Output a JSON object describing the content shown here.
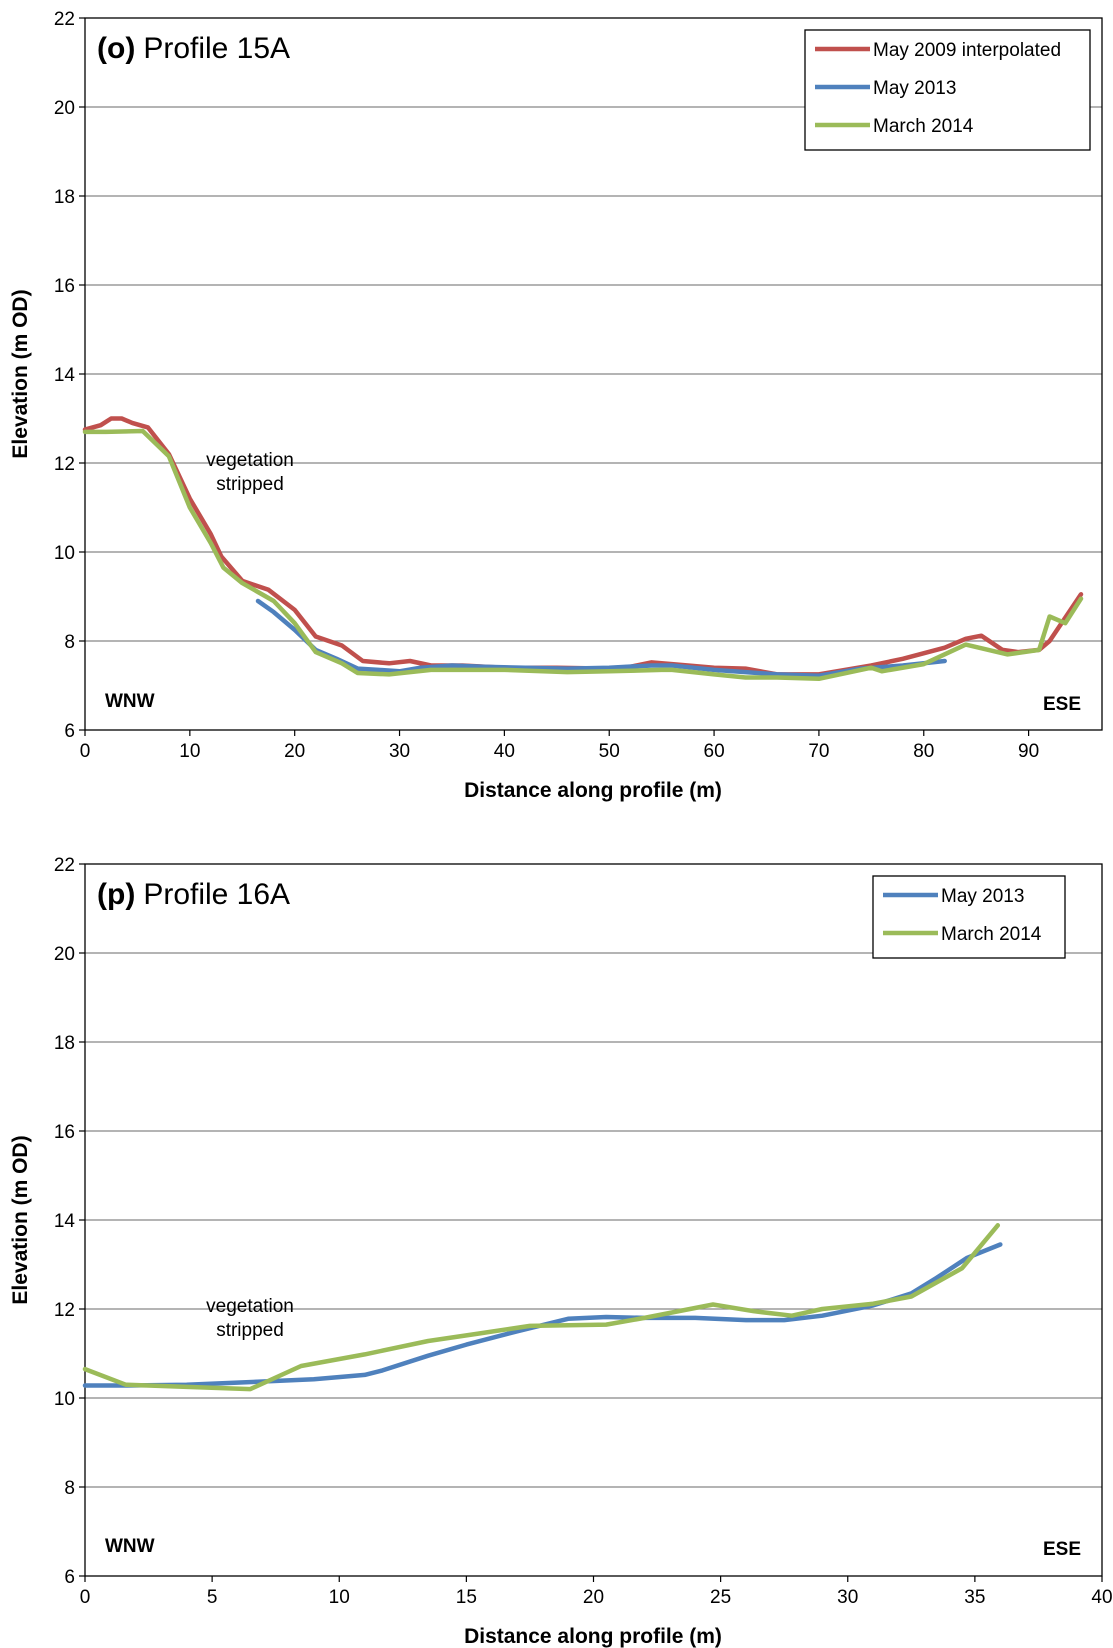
{
  "chart_data": [
    {
      "type": "line",
      "panel_label": "(o)",
      "title": "Profile 15A",
      "xlabel": "Distance along profile (m)",
      "ylabel": "Elevation (m OD)",
      "xlim": [
        0,
        97
      ],
      "ylim": [
        6,
        22
      ],
      "xticks": [
        0,
        10,
        20,
        30,
        40,
        50,
        60,
        70,
        80,
        90
      ],
      "yticks": [
        6,
        8,
        10,
        12,
        14,
        16,
        18,
        20,
        22
      ],
      "grid": "horizontal",
      "legend_position": "top-right",
      "annotations": {
        "vegetation": [
          "vegetation",
          "stripped"
        ],
        "left_direction": "WNW",
        "right_direction": "ESE"
      },
      "series": [
        {
          "name": "May 2009 interpolated",
          "color": "#c0504d",
          "points": [
            [
              0,
              12.75
            ],
            [
              1.5,
              12.85
            ],
            [
              2.5,
              13.0
            ],
            [
              3.5,
              13.0
            ],
            [
              4.5,
              12.9
            ],
            [
              6,
              12.8
            ],
            [
              8,
              12.2
            ],
            [
              10,
              11.2
            ],
            [
              12,
              10.4
            ],
            [
              13,
              9.9
            ],
            [
              15,
              9.35
            ],
            [
              17.5,
              9.15
            ],
            [
              20,
              8.7
            ],
            [
              22,
              8.1
            ],
            [
              24.5,
              7.9
            ],
            [
              26.5,
              7.55
            ],
            [
              29,
              7.5
            ],
            [
              31,
              7.55
            ],
            [
              33,
              7.45
            ],
            [
              36,
              7.45
            ],
            [
              40,
              7.4
            ],
            [
              45,
              7.4
            ],
            [
              50,
              7.38
            ],
            [
              52,
              7.42
            ],
            [
              54,
              7.52
            ],
            [
              56,
              7.48
            ],
            [
              60,
              7.4
            ],
            [
              63,
              7.38
            ],
            [
              66,
              7.25
            ],
            [
              70,
              7.25
            ],
            [
              75,
              7.45
            ],
            [
              78,
              7.6
            ],
            [
              82,
              7.85
            ],
            [
              84,
              8.05
            ],
            [
              85.5,
              8.12
            ],
            [
              87.5,
              7.8
            ],
            [
              89,
              7.75
            ],
            [
              91,
              7.8
            ],
            [
              92,
              8.0
            ],
            [
              94,
              8.7
            ],
            [
              95,
              9.05
            ]
          ]
        },
        {
          "name": "May 2013",
          "color": "#4f81bd",
          "points": [
            [
              16.5,
              8.9
            ],
            [
              18,
              8.65
            ],
            [
              20,
              8.25
            ],
            [
              22,
              7.8
            ],
            [
              24,
              7.6
            ],
            [
              26,
              7.38
            ],
            [
              28,
              7.35
            ],
            [
              30,
              7.32
            ],
            [
              32,
              7.4
            ],
            [
              35,
              7.45
            ],
            [
              38,
              7.42
            ],
            [
              42,
              7.4
            ],
            [
              46,
              7.38
            ],
            [
              50,
              7.4
            ],
            [
              54,
              7.45
            ],
            [
              56,
              7.45
            ],
            [
              60,
              7.35
            ],
            [
              63,
              7.3
            ],
            [
              66,
              7.25
            ],
            [
              70,
              7.22
            ],
            [
              74,
              7.38
            ],
            [
              78,
              7.45
            ],
            [
              82,
              7.55
            ]
          ]
        },
        {
          "name": "March 2014",
          "color": "#9bbb59",
          "points": [
            [
              0,
              12.7
            ],
            [
              2,
              12.7
            ],
            [
              5.5,
              12.72
            ],
            [
              8,
              12.15
            ],
            [
              10,
              11.0
            ],
            [
              12,
              10.2
            ],
            [
              13.2,
              9.65
            ],
            [
              15,
              9.3
            ],
            [
              18,
              8.9
            ],
            [
              20,
              8.4
            ],
            [
              22,
              7.75
            ],
            [
              24.5,
              7.5
            ],
            [
              26,
              7.28
            ],
            [
              29,
              7.25
            ],
            [
              33,
              7.35
            ],
            [
              40,
              7.35
            ],
            [
              46,
              7.3
            ],
            [
              50,
              7.32
            ],
            [
              55,
              7.35
            ],
            [
              56,
              7.35
            ],
            [
              60,
              7.25
            ],
            [
              63,
              7.18
            ],
            [
              66,
              7.18
            ],
            [
              70,
              7.15
            ],
            [
              75,
              7.4
            ],
            [
              76,
              7.32
            ],
            [
              80,
              7.48
            ],
            [
              84,
              7.92
            ],
            [
              88,
              7.7
            ],
            [
              91,
              7.8
            ],
            [
              92,
              8.55
            ],
            [
              93.5,
              8.4
            ],
            [
              95,
              8.95
            ]
          ]
        }
      ]
    },
    {
      "type": "line",
      "panel_label": "(p)",
      "title": "Profile 16A",
      "xlabel": "Distance along profile (m)",
      "ylabel": "Elevation (m OD)",
      "xlim": [
        0,
        40
      ],
      "ylim": [
        6,
        22
      ],
      "xticks": [
        0,
        5,
        10,
        15,
        20,
        25,
        30,
        35,
        40
      ],
      "yticks": [
        6,
        8,
        10,
        12,
        14,
        16,
        18,
        20,
        22
      ],
      "grid": "horizontal",
      "legend_position": "top-right",
      "annotations": {
        "vegetation": [
          "vegetation",
          "stripped"
        ],
        "left_direction": "WNW",
        "right_direction": "ESE"
      },
      "series": [
        {
          "name": "May 2013",
          "color": "#4f81bd",
          "points": [
            [
              0,
              10.28
            ],
            [
              1.6,
              10.28
            ],
            [
              4,
              10.3
            ],
            [
              7,
              10.37
            ],
            [
              9,
              10.42
            ],
            [
              11,
              10.52
            ],
            [
              11.7,
              10.62
            ],
            [
              13.5,
              10.95
            ],
            [
              15,
              11.2
            ],
            [
              17,
              11.5
            ],
            [
              19,
              11.78
            ],
            [
              20.5,
              11.82
            ],
            [
              22,
              11.8
            ],
            [
              24,
              11.8
            ],
            [
              26,
              11.75
            ],
            [
              27.5,
              11.75
            ],
            [
              29,
              11.85
            ],
            [
              31,
              12.08
            ],
            [
              32.5,
              12.35
            ],
            [
              33.5,
              12.7
            ],
            [
              34.7,
              13.15
            ],
            [
              36,
              13.45
            ]
          ]
        },
        {
          "name": "March 2014",
          "color": "#9bbb59",
          "points": [
            [
              0,
              10.65
            ],
            [
              1.6,
              10.3
            ],
            [
              4,
              10.25
            ],
            [
              6.5,
              10.2
            ],
            [
              8.5,
              10.72
            ],
            [
              11,
              10.98
            ],
            [
              13.5,
              11.28
            ],
            [
              15.5,
              11.45
            ],
            [
              17.5,
              11.62
            ],
            [
              20.5,
              11.65
            ],
            [
              22,
              11.8
            ],
            [
              24.7,
              12.1
            ],
            [
              26.3,
              11.95
            ],
            [
              27.8,
              11.85
            ],
            [
              29,
              12.0
            ],
            [
              31,
              12.12
            ],
            [
              32.5,
              12.28
            ],
            [
              34.5,
              12.92
            ],
            [
              35.9,
              13.88
            ]
          ]
        }
      ]
    }
  ]
}
